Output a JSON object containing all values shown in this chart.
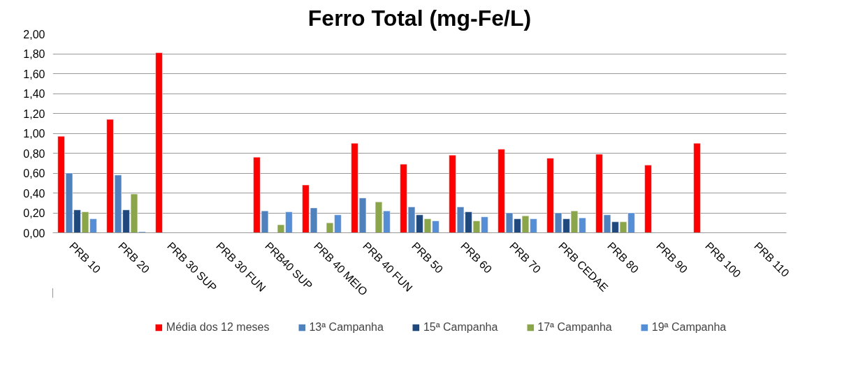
{
  "chart_data": {
    "type": "bar",
    "title": "Ferro Total (mg-Fe/L)",
    "categories": [
      "PRB 10",
      "PRB 20",
      "PRB 30 SUP",
      "PRB 30 FUN",
      "PRB40 SUP",
      "PRB 40 MEIO",
      "PRB 40 FUN",
      "PRB 50",
      "PRB 60",
      "PRB 70",
      "PRB CEDAE",
      "PRB 80",
      "PRB 90",
      "PRB 100",
      "PRB 110"
    ],
    "series": [
      {
        "name": "Média dos 12 meses",
        "color": "#ff0000",
        "values": [
          0.97,
          1.14,
          1.81,
          null,
          0.76,
          0.48,
          0.9,
          0.69,
          0.78,
          0.84,
          0.75,
          0.79,
          0.68,
          0.9,
          null
        ]
      },
      {
        "name": "13ª Campanha",
        "color": "#4f81bd",
        "values": [
          0.6,
          0.58,
          null,
          null,
          0.22,
          0.25,
          0.35,
          0.26,
          0.26,
          0.2,
          0.2,
          0.18,
          null,
          null,
          null
        ]
      },
      {
        "name": "15ª Campanha",
        "color": "#1f497d",
        "values": [
          0.23,
          0.23,
          null,
          null,
          null,
          null,
          null,
          0.18,
          0.21,
          0.14,
          0.14,
          0.11,
          null,
          null,
          null
        ]
      },
      {
        "name": "17ª Campanha",
        "color": "#8ba54b",
        "values": [
          0.21,
          0.39,
          null,
          null,
          0.08,
          0.1,
          0.31,
          0.14,
          0.12,
          0.17,
          0.22,
          0.11,
          null,
          null,
          null
        ]
      },
      {
        "name": "19ª Campanha",
        "color": "#558ed5",
        "values": [
          0.14,
          0.01,
          null,
          null,
          0.21,
          0.18,
          0.22,
          0.12,
          0.16,
          0.14,
          0.15,
          0.2,
          null,
          null,
          null
        ]
      }
    ],
    "ylim": [
      0,
      2
    ],
    "yticks": [
      {
        "value": 0,
        "label": "0,00"
      },
      {
        "value": 0.2,
        "label": "0,20"
      },
      {
        "value": 0.4,
        "label": "0,40"
      },
      {
        "value": 0.6,
        "label": "0,60"
      },
      {
        "value": 0.8,
        "label": "0,80"
      },
      {
        "value": 1.0,
        "label": "1,00"
      },
      {
        "value": 1.2,
        "label": "1,20"
      },
      {
        "value": 1.4,
        "label": "1,40"
      },
      {
        "value": 1.6,
        "label": "1,60"
      },
      {
        "value": 1.8,
        "label": "1,80"
      },
      {
        "value": 2.0,
        "label": "2,00"
      }
    ],
    "grid": "y",
    "legend": "bottom"
  }
}
